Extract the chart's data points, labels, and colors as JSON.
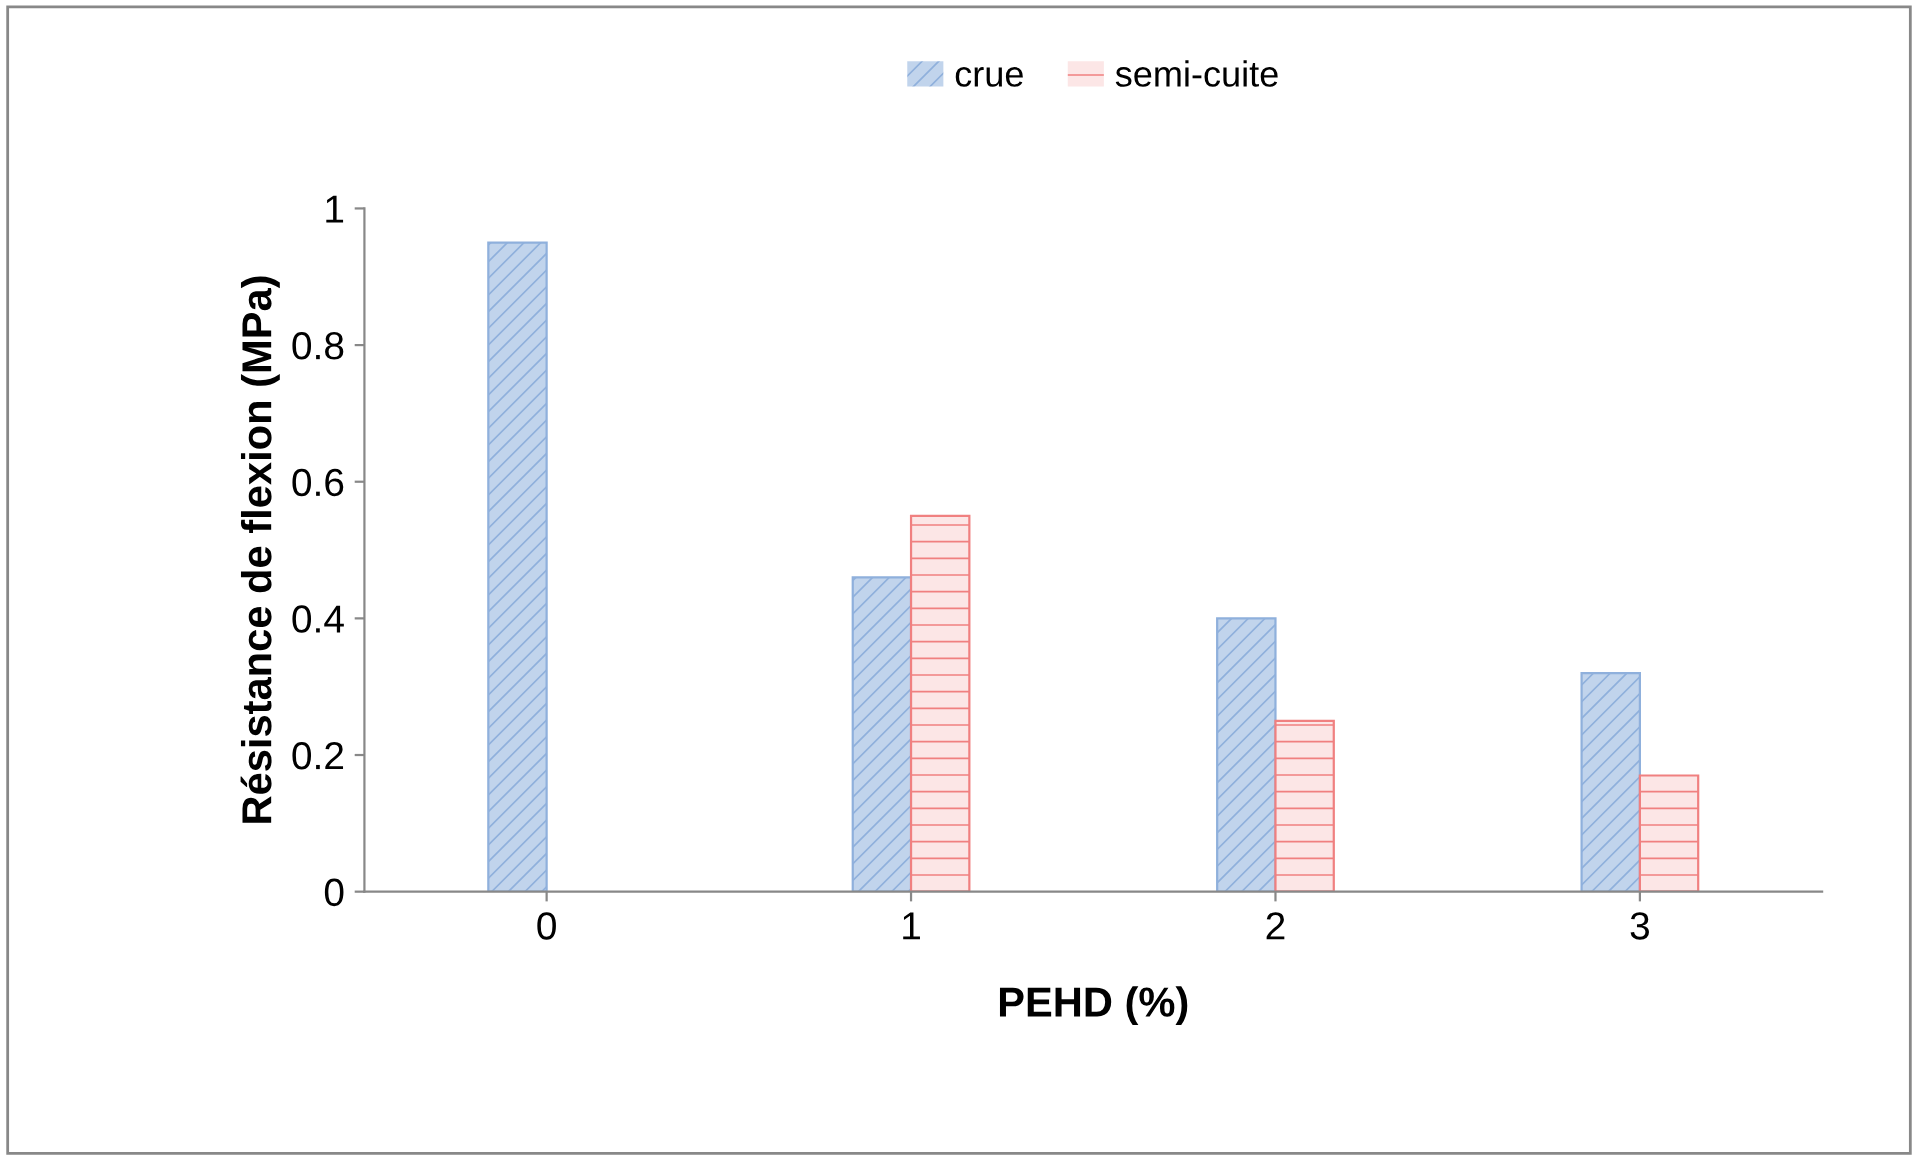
{
  "chart_data": {
    "type": "bar",
    "xlabel": "PEHD (%)",
    "ylabel": "Résistance de flexion (MPa)",
    "categories": [
      "0",
      "1",
      "2",
      "3"
    ],
    "series": [
      {
        "name": "crue",
        "color": "#8fb0dc",
        "values": [
          0.95,
          0.46,
          0.4,
          0.32
        ]
      },
      {
        "name": "semi-cuite",
        "color": "#f08080",
        "values": [
          null,
          0.55,
          0.25,
          0.17
        ]
      }
    ],
    "ylim": [
      0,
      1
    ],
    "yticks": [
      0,
      0.2,
      0.4,
      0.6,
      0.8,
      1
    ],
    "grid": false,
    "legend": "top"
  }
}
